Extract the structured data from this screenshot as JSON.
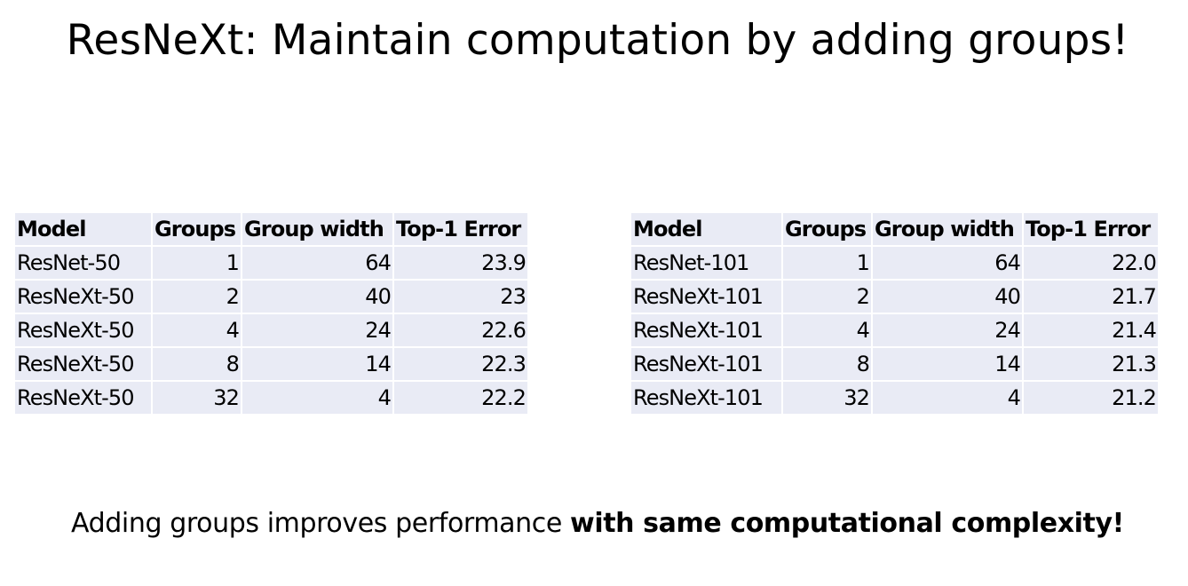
{
  "title": "ResNeXt: Maintain computation by adding groups!",
  "tables": [
    {
      "headers": [
        "Model",
        "Groups",
        "Group width",
        "Top-1 Error"
      ],
      "rows": [
        [
          "ResNet-50",
          "1",
          "64",
          "23.9"
        ],
        [
          "ResNeXt-50",
          "2",
          "40",
          "23"
        ],
        [
          "ResNeXt-50",
          "4",
          "24",
          "22.6"
        ],
        [
          "ResNeXt-50",
          "8",
          "14",
          "22.3"
        ],
        [
          "ResNeXt-50",
          "32",
          "4",
          "22.2"
        ]
      ]
    },
    {
      "headers": [
        "Model",
        "Groups",
        "Group width",
        "Top-1 Error"
      ],
      "rows": [
        [
          "ResNet-101",
          "1",
          "64",
          "22.0"
        ],
        [
          "ResNeXt-101",
          "2",
          "40",
          "21.7"
        ],
        [
          "ResNeXt-101",
          "4",
          "24",
          "21.4"
        ],
        [
          "ResNeXt-101",
          "8",
          "14",
          "21.3"
        ],
        [
          "ResNeXt-101",
          "32",
          "4",
          "21.2"
        ]
      ]
    }
  ],
  "footer": {
    "normal": "Adding groups improves performance ",
    "bold": "with same computational complexity!"
  },
  "colors": {
    "cell_background": "#e9ebf5",
    "text": "#000000",
    "page_background": "#ffffff"
  }
}
